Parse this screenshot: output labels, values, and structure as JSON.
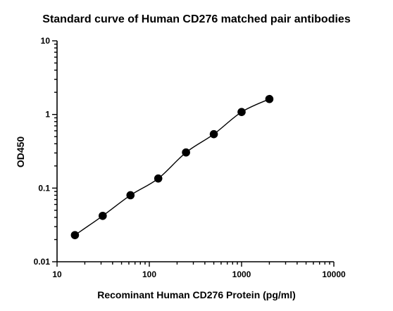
{
  "chart_data": {
    "type": "scatter",
    "title": "Standard curve of Human CD276 matched pair antibodies",
    "xlabel": "Recominant Human CD276 Protein (pg/ml)",
    "ylabel": "OD450",
    "xscale": "log",
    "yscale": "log",
    "xlim": [
      10,
      10000
    ],
    "ylim": [
      0.01,
      10
    ],
    "xticks": [
      "10",
      "100",
      "1000",
      "10000"
    ],
    "yticks": [
      "10",
      "1",
      "0.1",
      "0.01"
    ],
    "grid": false,
    "legend": "none",
    "marker_color": "#000000",
    "fit_curve": true,
    "x": [
      15.625,
      31.25,
      62.5,
      125,
      250,
      500,
      1000,
      2000
    ],
    "y": [
      0.023,
      0.042,
      0.08,
      0.135,
      0.305,
      0.54,
      1.08,
      1.62
    ]
  }
}
